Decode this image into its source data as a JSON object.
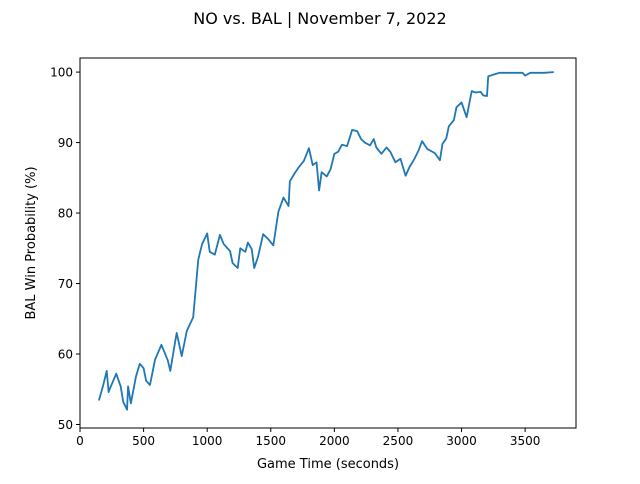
{
  "chart_data": {
    "type": "line",
    "title": "NO vs. BAL | November 7, 2022",
    "xlabel": "Game Time (seconds)",
    "ylabel": "BAL Win Probability (%)",
    "xlim": [
      0,
      3900
    ],
    "ylim": [
      49.5,
      102
    ],
    "xticks": [
      0,
      500,
      1000,
      1500,
      2000,
      2500,
      3000,
      3500
    ],
    "xtick_labels": [
      "0",
      "500",
      "1000",
      "1500",
      "2000",
      "2500",
      "3000",
      "3500"
    ],
    "yticks": [
      50,
      60,
      70,
      80,
      90,
      100
    ],
    "ytick_labels": [
      "50",
      "60",
      "70",
      "80",
      "90",
      "100"
    ],
    "grid": false,
    "legend": "none",
    "line_color": "#1f77b4",
    "series": [
      {
        "x": [
          150,
          180,
          210,
          225,
          240,
          285,
          320,
          340,
          370,
          378,
          400,
          440,
          470,
          500,
          520,
          550,
          590,
          640,
          690,
          710,
          760,
          800,
          840,
          890,
          930,
          960,
          1000,
          1020,
          1060,
          1100,
          1130,
          1180,
          1200,
          1240,
          1260,
          1300,
          1320,
          1350,
          1370,
          1400,
          1440,
          1480,
          1520,
          1560,
          1600,
          1640,
          1650,
          1690,
          1720,
          1760,
          1800,
          1830,
          1860,
          1880,
          1900,
          1940,
          1970,
          2000,
          2030,
          2060,
          2100,
          2140,
          2180,
          2210,
          2240,
          2280,
          2310,
          2330,
          2370,
          2410,
          2440,
          2480,
          2520,
          2560,
          2590,
          2630,
          2660,
          2690,
          2730,
          2790,
          2830,
          2850,
          2880,
          2900,
          2940,
          2960,
          3000,
          3040,
          3080,
          3110,
          3150,
          3170,
          3200,
          3210,
          3260,
          3300,
          3360,
          3420,
          3480,
          3500,
          3540,
          3590,
          3650,
          3720
        ],
        "y": [
          53.5,
          55.4,
          57.6,
          54.6,
          55.3,
          57.2,
          55.4,
          53.2,
          52.1,
          55.4,
          53.0,
          56.8,
          58.6,
          58.0,
          56.2,
          55.6,
          59.2,
          61.3,
          59.1,
          57.6,
          63.0,
          59.7,
          63.3,
          65.2,
          73.4,
          75.6,
          77.1,
          74.5,
          74.1,
          76.9,
          75.6,
          74.6,
          72.9,
          72.2,
          75.0,
          74.5,
          75.8,
          74.9,
          72.2,
          73.8,
          77.0,
          76.3,
          75.4,
          80.2,
          82.2,
          81.0,
          84.5,
          85.7,
          86.5,
          87.4,
          89.2,
          86.8,
          87.2,
          83.2,
          85.8,
          85.2,
          86.2,
          88.4,
          88.7,
          89.7,
          89.5,
          91.8,
          91.6,
          90.5,
          90.0,
          89.6,
          90.5,
          89.3,
          88.4,
          89.3,
          88.7,
          87.2,
          87.7,
          85.3,
          86.5,
          87.7,
          88.8,
          90.2,
          89.1,
          88.5,
          87.5,
          89.8,
          90.6,
          92.3,
          93.2,
          95.0,
          95.7,
          93.6,
          97.3,
          97.1,
          97.2,
          96.7,
          96.6,
          99.4,
          99.7,
          99.9,
          99.9,
          99.9,
          99.9,
          99.5,
          99.9,
          99.9,
          99.9,
          100.0
        ]
      }
    ]
  }
}
